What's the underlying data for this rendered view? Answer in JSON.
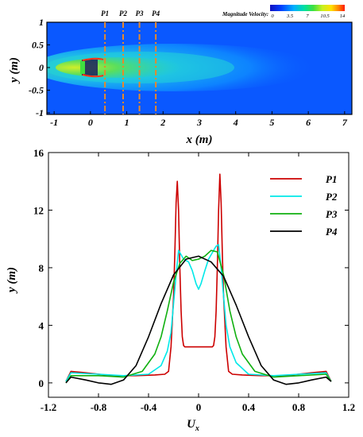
{
  "contour": {
    "colorbar_title": "Magnitude Velocity:",
    "colorbar_ticks": [
      "0",
      "3.5",
      "7",
      "10.5",
      "14"
    ],
    "colorbar_colors": [
      "#1010c0",
      "#0040ff",
      "#00b0ff",
      "#00e0a0",
      "#40e040",
      "#c8f020",
      "#ffe000",
      "#ff8000",
      "#ff1800"
    ],
    "xlabel_main": "x",
    "xlabel_unit": "(m)",
    "ylabel_main": "y",
    "ylabel_unit": "(m)",
    "x_ticks": [
      "-1",
      "0",
      "1",
      "2",
      "3",
      "4",
      "5",
      "6",
      "7"
    ],
    "y_ticks": [
      "1",
      "0.5",
      "0",
      "-0.5",
      "-1"
    ],
    "probe_lines": [
      {
        "label": "P1",
        "x": 0.4
      },
      {
        "label": "P2",
        "x": 0.9
      },
      {
        "label": "P3",
        "x": 1.35
      },
      {
        "label": "P4",
        "x": 1.8
      }
    ],
    "probe_color": "#e8882a",
    "background_color": "#0a58ff"
  },
  "chart_data": {
    "type": "line",
    "title": "",
    "xlabel": "U",
    "xlabel_sub": "x",
    "ylabel": "y (m)",
    "xlim": [
      -1.2,
      1.2
    ],
    "ylim": [
      -1,
      16
    ],
    "x_ticks": [
      "-1.2",
      "-0.8",
      "-0.4",
      "0",
      "0.4",
      "0.8",
      "1.2"
    ],
    "y_ticks": [
      "0",
      "4",
      "8",
      "12",
      "16"
    ],
    "legend_position": "top-right",
    "series": [
      {
        "name": "P1",
        "color": "#cc0000",
        "x": [
          -1.06,
          -1.02,
          -0.9,
          -0.7,
          -0.5,
          -0.35,
          -0.27,
          -0.24,
          -0.22,
          -0.2,
          -0.19,
          -0.18,
          -0.17,
          -0.16,
          -0.15,
          -0.14,
          -0.13,
          -0.12,
          -0.11,
          -0.1,
          -0.08,
          0,
          0.08,
          0.1,
          0.11,
          0.12,
          0.13,
          0.14,
          0.15,
          0.16,
          0.17,
          0.18,
          0.19,
          0.2,
          0.22,
          0.24,
          0.27,
          0.35,
          0.5,
          0.7,
          0.9,
          1.02,
          1.06
        ],
        "y": [
          0.1,
          0.8,
          0.7,
          0.5,
          0.5,
          0.55,
          0.6,
          0.8,
          2.5,
          6,
          9,
          12.5,
          14,
          12,
          8,
          5,
          3.2,
          2.6,
          2.5,
          2.5,
          2.5,
          2.5,
          2.5,
          2.5,
          2.5,
          2.6,
          3.2,
          5,
          8,
          12,
          14.5,
          12.5,
          9,
          6,
          2.5,
          0.8,
          0.6,
          0.55,
          0.5,
          0.5,
          0.7,
          0.8,
          0.1
        ]
      },
      {
        "name": "P2",
        "color": "#00e8e8",
        "x": [
          -1.06,
          -1.02,
          -0.8,
          -0.6,
          -0.4,
          -0.3,
          -0.25,
          -0.22,
          -0.2,
          -0.18,
          -0.16,
          -0.14,
          -0.12,
          -0.1,
          -0.08,
          -0.05,
          -0.02,
          0,
          0.02,
          0.05,
          0.08,
          0.1,
          0.12,
          0.14,
          0.16,
          0.18,
          0.2,
          0.22,
          0.25,
          0.3,
          0.4,
          0.6,
          0.8,
          1.02,
          1.06
        ],
        "y": [
          0.1,
          0.7,
          0.6,
          0.5,
          0.6,
          1.2,
          2.2,
          3.5,
          5.5,
          7.5,
          9.2,
          8.9,
          8.6,
          8.5,
          8.4,
          7.8,
          6.9,
          6.5,
          6.9,
          7.8,
          8.6,
          8.9,
          9.2,
          9.5,
          9.6,
          8,
          6,
          4,
          2.5,
          1.4,
          0.6,
          0.5,
          0.6,
          0.7,
          0.1
        ]
      },
      {
        "name": "P3",
        "color": "#10b010",
        "x": [
          -1.06,
          -1.02,
          -0.8,
          -0.6,
          -0.45,
          -0.35,
          -0.3,
          -0.25,
          -0.2,
          -0.15,
          -0.1,
          -0.05,
          0,
          0.05,
          0.1,
          0.15,
          0.2,
          0.25,
          0.3,
          0.35,
          0.45,
          0.6,
          0.8,
          1.02,
          1.06
        ],
        "y": [
          0,
          0.5,
          0.5,
          0.4,
          0.8,
          2,
          3.2,
          5,
          7,
          8.3,
          8.8,
          8.5,
          8.6,
          8.8,
          9.2,
          9.1,
          7.5,
          5,
          3.2,
          2,
          0.8,
          0.4,
          0.5,
          0.6,
          0.1
        ]
      },
      {
        "name": "P4",
        "color": "#000000",
        "x": [
          -1.06,
          -1.02,
          -0.9,
          -0.8,
          -0.7,
          -0.6,
          -0.5,
          -0.4,
          -0.3,
          -0.2,
          -0.1,
          0,
          0.1,
          0.2,
          0.3,
          0.4,
          0.5,
          0.6,
          0.7,
          0.8,
          0.9,
          1.02,
          1.06
        ],
        "y": [
          0,
          0.4,
          0.2,
          0,
          -0.1,
          0.2,
          1.2,
          3.2,
          5.5,
          7.5,
          8.6,
          8.8,
          8.4,
          7.4,
          5.4,
          3.2,
          1.2,
          0.2,
          -0.1,
          0,
          0.2,
          0.4,
          0.1
        ]
      }
    ]
  }
}
